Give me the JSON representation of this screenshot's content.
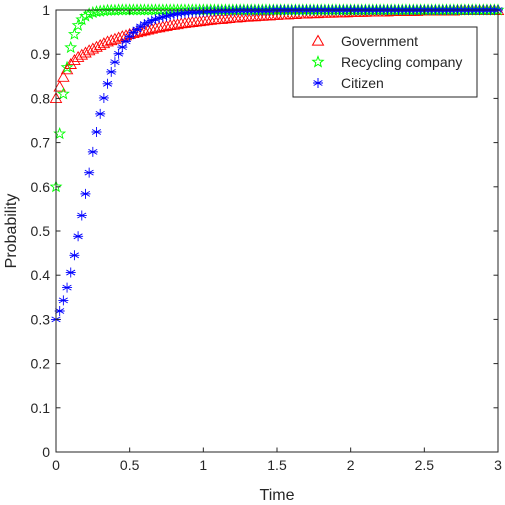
{
  "chart_data": {
    "type": "scatter",
    "title": "",
    "xlabel": "Time",
    "ylabel": "Probability",
    "xlim": [
      0,
      3
    ],
    "ylim": [
      0,
      1
    ],
    "xticks": [
      "0",
      "0.5",
      "1",
      "1.5",
      "2",
      "2.5",
      "3"
    ],
    "yticks": [
      "0",
      "0.1",
      "0.2",
      "0.3",
      "0.4",
      "0.5",
      "0.6",
      "0.7",
      "0.8",
      "0.9",
      "1"
    ],
    "grid": false,
    "legend_position": "top-right",
    "x": [
      0,
      0.025,
      0.05,
      0.075,
      0.1,
      0.125,
      0.15,
      0.175,
      0.2,
      0.225,
      0.25,
      0.275,
      0.3,
      0.325,
      0.35,
      0.375,
      0.4,
      0.425,
      0.45,
      0.475,
      0.5,
      0.525,
      0.55,
      0.575,
      0.6,
      0.625,
      0.65,
      0.675,
      0.7,
      0.725,
      0.75,
      0.775,
      0.8,
      0.825,
      0.85,
      0.875,
      0.9,
      0.925,
      0.95,
      0.975,
      1,
      1.025,
      1.05,
      1.075,
      1.1,
      1.125,
      1.15,
      1.175,
      1.2,
      1.225,
      1.25,
      1.275,
      1.3,
      1.325,
      1.35,
      1.375,
      1.4,
      1.425,
      1.45,
      1.475,
      1.5,
      1.525,
      1.55,
      1.575,
      1.6,
      1.625,
      1.65,
      1.675,
      1.7,
      1.725,
      1.75,
      1.775,
      1.8,
      1.825,
      1.85,
      1.875,
      1.9,
      1.925,
      1.95,
      1.975,
      2,
      2.025,
      2.05,
      2.075,
      2.1,
      2.125,
      2.15,
      2.175,
      2.2,
      2.225,
      2.25,
      2.275,
      2.3,
      2.325,
      2.35,
      2.375,
      2.4,
      2.425,
      2.45,
      2.475,
      2.5,
      2.525,
      2.55,
      2.575,
      2.6,
      2.625,
      2.65,
      2.675,
      2.7,
      2.725,
      2.75,
      2.775,
      2.8,
      2.825,
      2.85,
      2.875,
      2.9,
      2.925,
      2.95,
      2.975,
      3
    ],
    "series": [
      {
        "name": "Government",
        "marker": "triangle",
        "color": "#ff0000",
        "values": [
          0.8,
          0.826,
          0.848,
          0.865,
          0.877,
          0.886,
          0.893,
          0.898,
          0.903,
          0.908,
          0.912,
          0.916,
          0.92,
          0.924,
          0.928,
          0.931,
          0.934,
          0.937,
          0.94,
          0.942,
          0.945,
          0.947,
          0.949,
          0.951,
          0.953,
          0.955,
          0.957,
          0.959,
          0.96,
          0.962,
          0.963,
          0.965,
          0.966,
          0.967,
          0.969,
          0.97,
          0.971,
          0.972,
          0.973,
          0.974,
          0.975,
          0.976,
          0.977,
          0.978,
          0.979,
          0.979,
          0.98,
          0.981,
          0.982,
          0.982,
          0.983,
          0.984,
          0.984,
          0.985,
          0.985,
          0.986,
          0.986,
          0.987,
          0.987,
          0.988,
          0.988,
          0.989,
          0.989,
          0.989,
          0.99,
          0.99,
          0.991,
          0.991,
          0.991,
          0.992,
          0.992,
          0.992,
          0.993,
          0.993,
          0.993,
          0.993,
          0.994,
          0.994,
          0.994,
          0.994,
          0.995,
          0.995,
          0.995,
          0.995,
          0.995,
          0.996,
          0.996,
          0.996,
          0.996,
          0.996,
          0.996,
          0.997,
          0.997,
          0.997,
          0.997,
          0.997,
          0.997,
          0.997,
          0.997,
          0.998,
          0.998,
          0.998,
          0.998,
          0.998,
          0.998,
          0.998,
          0.998,
          0.998,
          0.998,
          0.999,
          0.999,
          0.999,
          0.999,
          0.999,
          0.999,
          0.999,
          0.999,
          0.999,
          0.999,
          0.999,
          0.999
        ]
      },
      {
        "name": "Recycling company",
        "marker": "pentagram",
        "color": "#00ff00",
        "values": [
          0.6,
          0.72,
          0.81,
          0.87,
          0.915,
          0.945,
          0.965,
          0.978,
          0.986,
          0.991,
          0.994,
          0.996,
          0.997,
          0.998,
          0.999,
          0.999,
          0.999,
          1,
          1,
          1,
          1,
          1,
          1,
          1,
          1,
          1,
          1,
          1,
          1,
          1,
          1,
          1,
          1,
          1,
          1,
          1,
          1,
          1,
          1,
          1,
          1,
          1,
          1,
          1,
          1,
          1,
          1,
          1,
          1,
          1,
          1,
          1,
          1,
          1,
          1,
          1,
          1,
          1,
          1,
          1,
          1,
          1,
          1,
          1,
          1,
          1,
          1,
          1,
          1,
          1,
          1,
          1,
          1,
          1,
          1,
          1,
          1,
          1,
          1,
          1,
          1,
          1,
          1,
          1,
          1,
          1,
          1,
          1,
          1,
          1,
          1,
          1,
          1,
          1,
          1,
          1,
          1,
          1,
          1,
          1,
          1,
          1,
          1,
          1,
          1,
          1,
          1,
          1,
          1,
          1,
          1,
          1,
          1,
          1,
          1,
          1,
          1,
          1,
          1,
          1,
          1
        ]
      },
      {
        "name": "Citizen",
        "marker": "asterisk",
        "color": "#0000ff",
        "values": [
          0.3,
          0.319,
          0.343,
          0.372,
          0.406,
          0.445,
          0.488,
          0.535,
          0.584,
          0.632,
          0.679,
          0.724,
          0.765,
          0.801,
          0.833,
          0.86,
          0.882,
          0.901,
          0.916,
          0.929,
          0.94,
          0.949,
          0.956,
          0.963,
          0.968,
          0.972,
          0.976,
          0.979,
          0.982,
          0.984,
          0.986,
          0.988,
          0.99,
          0.991,
          0.992,
          0.993,
          0.994,
          0.995,
          0.995,
          0.996,
          0.996,
          0.997,
          0.997,
          0.997,
          0.998,
          0.998,
          0.998,
          0.998,
          0.998,
          0.999,
          0.999,
          0.999,
          0.999,
          0.999,
          0.999,
          0.999,
          0.999,
          0.999,
          0.999,
          1,
          1,
          1,
          1,
          1,
          1,
          1,
          1,
          1,
          1,
          1,
          1,
          1,
          1,
          1,
          1,
          1,
          1,
          1,
          1,
          1,
          1,
          1,
          1,
          1,
          1,
          1,
          1,
          1,
          1,
          1,
          1,
          1,
          1,
          1,
          1,
          1,
          1,
          1,
          1,
          1,
          1,
          1,
          1,
          1,
          1,
          1,
          1,
          1,
          1,
          1,
          1,
          1,
          1,
          1,
          1,
          1,
          1,
          1,
          1,
          1,
          1
        ]
      }
    ]
  }
}
